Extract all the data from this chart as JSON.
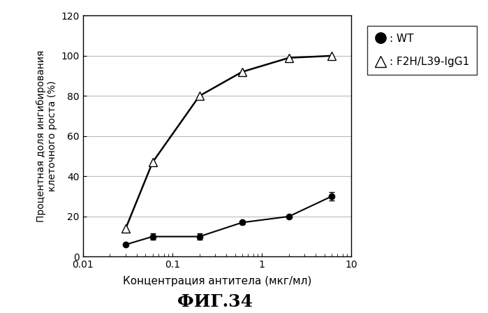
{
  "wt_x": [
    0.03,
    0.06,
    0.2,
    0.6,
    2.0,
    6.0
  ],
  "wt_y": [
    6,
    10,
    10,
    17,
    20,
    30
  ],
  "wt_yerr": [
    0,
    1.5,
    1.5,
    1.0,
    0,
    2.0
  ],
  "f2h_x": [
    0.03,
    0.06,
    0.2,
    0.6,
    2.0,
    6.0
  ],
  "f2h_y": [
    14,
    47,
    80,
    92,
    99,
    100
  ],
  "xlabel": "Концентрация антитела (мкг/мл)",
  "ylabel": "Процентная доля ингибирования\nклеточного роста (%)",
  "fig_label": "ФИГ.34",
  "legend_wt": ": WT",
  "legend_f2h": ": F2H/L39-IgG1",
  "xlim": [
    0.01,
    10
  ],
  "ylim": [
    0,
    120
  ],
  "yticks": [
    0,
    20,
    40,
    60,
    80,
    100,
    120
  ],
  "background_color": "#ffffff",
  "line_color": "#000000"
}
